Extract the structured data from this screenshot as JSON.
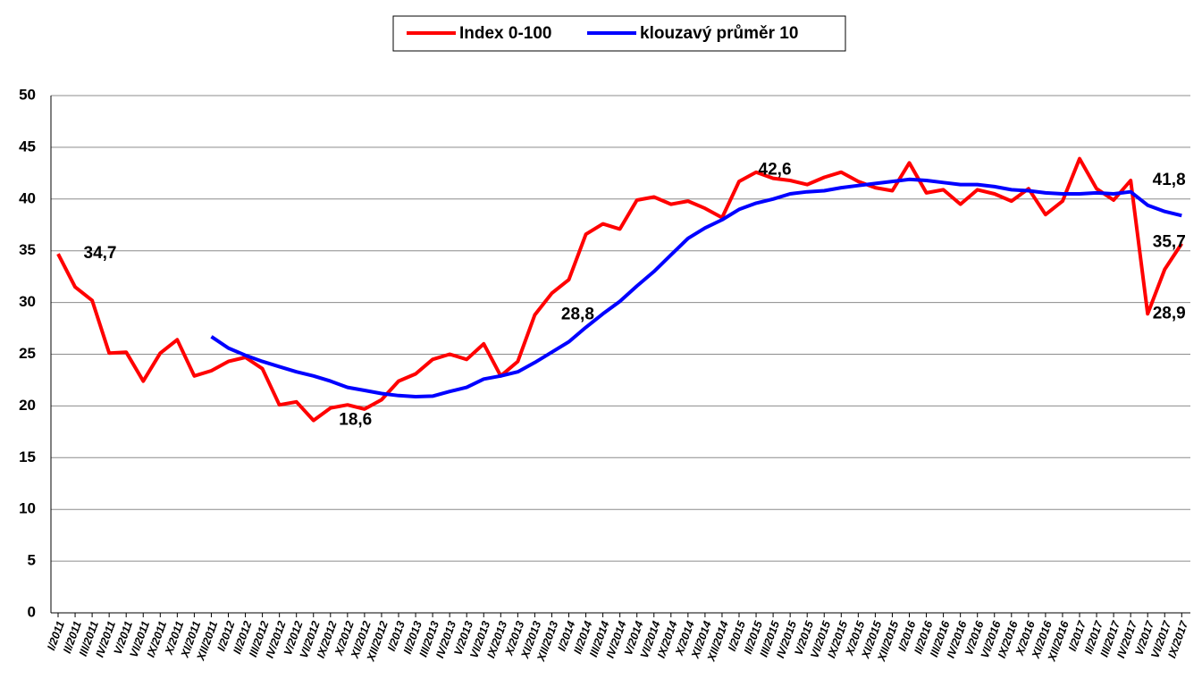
{
  "chart_data": {
    "type": "line",
    "categories": [
      "I/2011",
      "II/2011",
      "III/2011",
      "IV/2011",
      "V/2011",
      "VI/2011",
      "IX/2011",
      "X/2011",
      "XI/2011",
      "XII/2011",
      "I/2012",
      "II/2012",
      "III/2012",
      "IV/2012",
      "V/2012",
      "VI/2012",
      "IX/2012",
      "X/2012",
      "XI/2012",
      "XII/2012",
      "I/2013",
      "II/2013",
      "III/2013",
      "IV/2013",
      "V/2013",
      "VI/2013",
      "IX/2013",
      "X/2013",
      "XI/2013",
      "XII/2013",
      "I/2014",
      "II/2014",
      "III/2014",
      "IV/2014",
      "V/2014",
      "VI/2014",
      "IX/2014",
      "X/2014",
      "XI/2014",
      "XII/2014",
      "I/2015",
      "II/2015",
      "III/2015",
      "IV/2015",
      "V/2015",
      "VI/2015",
      "IX/2015",
      "X/2015",
      "XI/2015",
      "XII/2015",
      "I/2016",
      "II/2016",
      "III/2016",
      "IV/2016",
      "V/2016",
      "VI/2016",
      "IX/2016",
      "X/2016",
      "XI/2016",
      "XII/2016",
      "I/2017",
      "II/2017",
      "III/2017",
      "IV/2017",
      "V/2017",
      "VI/2017",
      "IX/2017"
    ],
    "series": [
      {
        "name": "Index 0-100",
        "color": "#ff0000",
        "values": [
          34.7,
          31.5,
          30.2,
          25.1,
          25.2,
          22.4,
          25.1,
          26.4,
          22.9,
          23.4,
          24.3,
          24.7,
          23.6,
          20.1,
          20.4,
          18.6,
          19.8,
          20.1,
          19.7,
          20.6,
          22.4,
          23.1,
          24.5,
          25.0,
          24.5,
          26.0,
          22.9,
          24.3,
          28.8,
          30.9,
          32.2,
          36.6,
          37.6,
          37.1,
          39.9,
          40.2,
          39.5,
          39.8,
          39.1,
          38.2,
          41.7,
          42.6,
          42.0,
          41.8,
          41.4,
          42.1,
          42.6,
          41.7,
          41.1,
          40.8,
          43.5,
          40.6,
          40.9,
          39.5,
          40.9,
          40.5,
          39.8,
          41.0,
          38.5,
          39.8,
          43.9,
          41.0,
          39.9,
          41.8,
          28.9,
          33.2,
          35.7
        ],
        "value_labels": [
          "34,7",
          null,
          null,
          null,
          null,
          null,
          null,
          null,
          null,
          null,
          null,
          null,
          null,
          null,
          null,
          "18,6",
          null,
          null,
          null,
          null,
          null,
          null,
          null,
          null,
          null,
          null,
          null,
          null,
          "28,8",
          null,
          null,
          null,
          null,
          null,
          null,
          null,
          null,
          null,
          null,
          null,
          null,
          "42,6",
          null,
          null,
          null,
          null,
          null,
          null,
          null,
          null,
          null,
          null,
          null,
          null,
          null,
          null,
          null,
          null,
          null,
          null,
          null,
          null,
          null,
          "41,8",
          "28,9",
          null,
          "35,7"
        ]
      },
      {
        "name": "klouzavý průměr 10",
        "color": "#0000ff",
        "values": [
          null,
          null,
          null,
          null,
          null,
          null,
          null,
          null,
          null,
          26.7,
          25.6,
          24.9,
          24.3,
          23.8,
          23.3,
          22.9,
          22.4,
          21.8,
          21.5,
          21.2,
          21.0,
          20.9,
          20.95,
          21.4,
          21.8,
          22.6,
          22.9,
          23.3,
          24.2,
          25.2,
          26.2,
          27.6,
          28.9,
          30.1,
          31.6,
          33.0,
          34.6,
          36.2,
          37.2,
          38.0,
          39.0,
          39.6,
          40.0,
          40.5,
          40.7,
          40.8,
          41.1,
          41.3,
          41.5,
          41.7,
          41.9,
          41.8,
          41.6,
          41.4,
          41.4,
          41.2,
          40.9,
          40.8,
          40.6,
          40.5,
          40.5,
          40.6,
          40.5,
          40.7,
          39.4,
          38.8,
          38.4
        ]
      }
    ],
    "ylim": [
      0,
      50
    ],
    "yticks": [
      0,
      5,
      10,
      15,
      20,
      25,
      30,
      35,
      40,
      45,
      50
    ],
    "grid": true,
    "legend": "top"
  }
}
